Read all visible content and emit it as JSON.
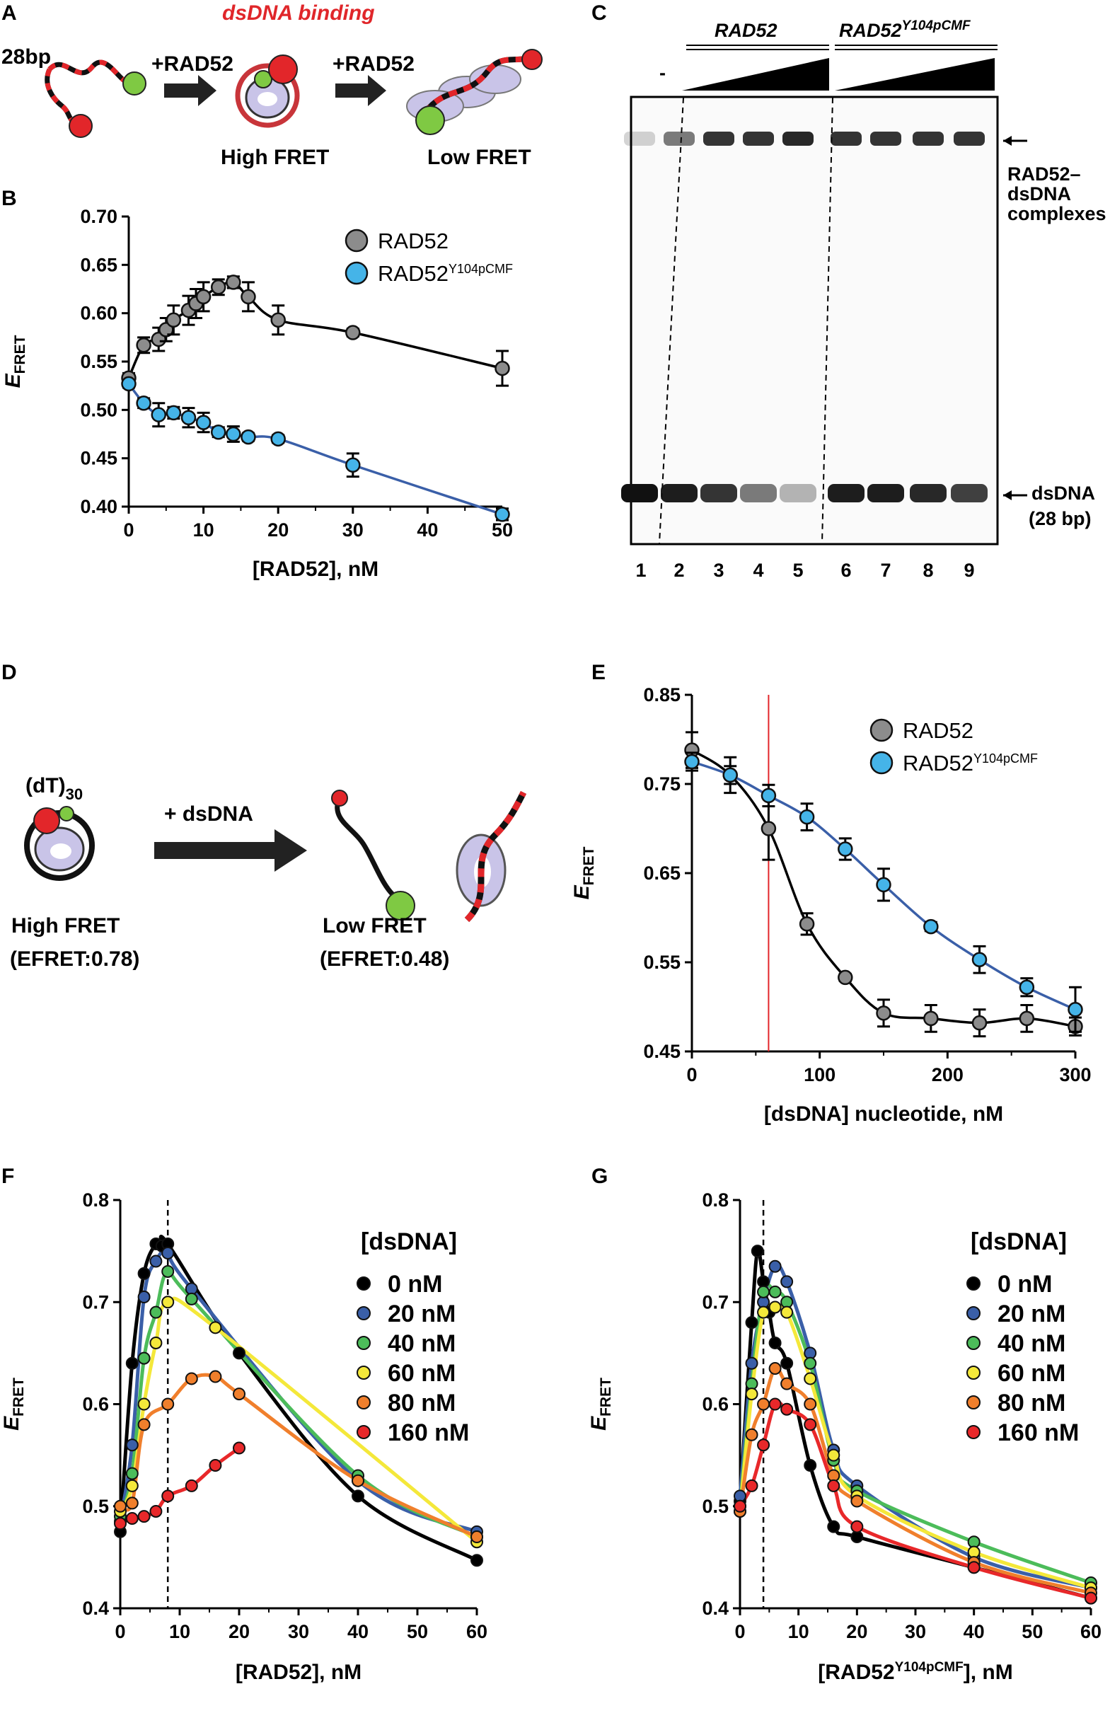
{
  "panels": {
    "A": {
      "label": "A",
      "title": "dsDNA binding",
      "dna_label": "28bp",
      "arrow1": "+RAD52",
      "arrow2": "+RAD52",
      "state1": "High FRET",
      "state2": "Low FRET"
    },
    "C": {
      "label": "C",
      "group1": "RAD52",
      "group2": "RAD52",
      "group2_sup": "Y104pCMF",
      "lane1_label": "-",
      "complex_label": [
        "RAD52–",
        "dsDNA",
        "complexes"
      ],
      "dsdna_label": [
        "dsDNA",
        "(28 bp)"
      ],
      "lanes": [
        "1",
        "2",
        "3",
        "4",
        "5",
        "6",
        "7",
        "8",
        "9"
      ]
    },
    "D": {
      "label": "D",
      "substrate": "(dT)",
      "substrate_sub": "30",
      "arrow": "+ dsDNA",
      "state1": "High FRET",
      "state1_value": "(EFRET:0.78)",
      "state2": "Low FRET",
      "state2_value": "(EFRET:0.48)"
    }
  },
  "colors": {
    "rad52": "#8c8c8c",
    "mutant": "#45b4e8",
    "black": "#000000",
    "blue": "#3a5fa8",
    "green": "#4cbc5a",
    "yellow": "#f4e83a",
    "orange": "#f07f2c",
    "red": "#e8282a"
  },
  "chart_data": [
    {
      "panel": "B",
      "type": "scatter",
      "xlabel": "[RAD52], nM",
      "ylabel": "EFRET",
      "xlim": [
        0,
        50
      ],
      "ylim": [
        0.4,
        0.7
      ],
      "xticks": [
        0,
        10,
        20,
        30,
        40,
        50
      ],
      "yticks": [
        "0.70",
        "0.65",
        "0.60",
        "0.55",
        "0.50",
        "0.45",
        "0.40"
      ],
      "legend_position": "top-right",
      "series": [
        {
          "name": "RAD52",
          "x": [
            0,
            2,
            4,
            5,
            6,
            8,
            9,
            10,
            12,
            14,
            16,
            20,
            30,
            50
          ],
          "y": [
            0.533,
            0.567,
            0.573,
            0.583,
            0.593,
            0.603,
            0.61,
            0.617,
            0.627,
            0.632,
            0.617,
            0.593,
            0.58,
            0.543
          ],
          "err": [
            0.005,
            0.008,
            0.012,
            0.012,
            0.015,
            0.015,
            0.015,
            0.015,
            0.008,
            0.006,
            0.015,
            0.015,
            0.004,
            0.018
          ]
        },
        {
          "name": "RAD52Y104pCMF",
          "x": [
            0,
            2,
            4,
            6,
            8,
            10,
            12,
            14,
            16,
            20,
            30,
            50
          ],
          "y": [
            0.527,
            0.507,
            0.495,
            0.497,
            0.492,
            0.487,
            0.477,
            0.475,
            0.472,
            0.47,
            0.443,
            0.392
          ],
          "err": [
            0.004,
            0.005,
            0.012,
            0.006,
            0.01,
            0.01,
            0.005,
            0.008,
            0.004,
            0.004,
            0.012,
            0.006
          ]
        }
      ]
    },
    {
      "panel": "E",
      "type": "scatter",
      "xlabel": "[dsDNA] nucleotide, nM",
      "ylabel": "EFRET",
      "xlim": [
        0,
        300
      ],
      "ylim": [
        0.45,
        0.85
      ],
      "xticks": [
        0,
        100,
        200,
        300
      ],
      "yticks": [
        "0.85",
        "0.75",
        "0.65",
        "0.55",
        "0.45"
      ],
      "vline_x": 60,
      "legend_position": "top-right",
      "series": [
        {
          "name": "RAD52",
          "x": [
            0,
            30,
            60,
            90,
            120,
            150,
            187,
            225,
            262,
            300
          ],
          "y": [
            0.788,
            0.76,
            0.7,
            0.593,
            0.533,
            0.493,
            0.487,
            0.482,
            0.487,
            0.478
          ],
          "err": [
            0.02,
            0.02,
            0.035,
            0.012,
            0.004,
            0.015,
            0.015,
            0.015,
            0.015,
            0.01
          ]
        },
        {
          "name": "RAD52Y104pCMF",
          "x": [
            0,
            30,
            60,
            90,
            120,
            150,
            187,
            225,
            262,
            300
          ],
          "y": [
            0.775,
            0.76,
            0.737,
            0.713,
            0.677,
            0.637,
            0.59,
            0.553,
            0.522,
            0.497
          ],
          "err": [
            0.01,
            0.01,
            0.012,
            0.015,
            0.012,
            0.018,
            0.005,
            0.015,
            0.01,
            0.025
          ]
        }
      ]
    },
    {
      "panel": "F",
      "type": "scatter",
      "xlabel": "[RAD52], nM",
      "ylabel": "EFRET",
      "xlim": [
        0,
        60
      ],
      "ylim": [
        0.4,
        0.8
      ],
      "xticks": [
        0,
        10,
        20,
        30,
        40,
        50,
        60
      ],
      "yticks": [
        "0.8",
        "0.7",
        "0.6",
        "0.5",
        "0.4"
      ],
      "vline_x": 8,
      "legend_title": "[dsDNA]",
      "legend_position": "right",
      "series": [
        {
          "name": "0 nM",
          "x": [
            0,
            2,
            4,
            6,
            7,
            8,
            20,
            40,
            60
          ],
          "y": [
            0.475,
            0.64,
            0.728,
            0.757,
            0.755,
            0.757,
            0.65,
            0.51,
            0.447
          ]
        },
        {
          "name": "20 nM",
          "x": [
            0,
            2,
            4,
            6,
            8,
            12,
            40,
            60
          ],
          "y": [
            0.485,
            0.56,
            0.705,
            0.74,
            0.748,
            0.713,
            0.525,
            0.475
          ]
        },
        {
          "name": "40 nM",
          "x": [
            0,
            2,
            4,
            6,
            8,
            12,
            40,
            60
          ],
          "y": [
            0.49,
            0.532,
            0.645,
            0.69,
            0.73,
            0.703,
            0.53,
            0.47
          ]
        },
        {
          "name": "60 nM",
          "x": [
            0,
            2,
            4,
            6,
            8,
            16,
            60
          ],
          "y": [
            0.495,
            0.52,
            0.6,
            0.66,
            0.7,
            0.675,
            0.465
          ]
        },
        {
          "name": "80 nM",
          "x": [
            0,
            2,
            4,
            8,
            12,
            16,
            20,
            40,
            60
          ],
          "y": [
            0.5,
            0.503,
            0.58,
            0.6,
            0.625,
            0.627,
            0.61,
            0.525,
            0.47
          ]
        },
        {
          "name": "160 nM",
          "x": [
            0,
            2,
            4,
            6,
            8,
            12,
            16,
            20
          ],
          "y": [
            0.483,
            0.488,
            0.49,
            0.495,
            0.51,
            0.52,
            0.54,
            0.557
          ]
        }
      ]
    },
    {
      "panel": "G",
      "type": "scatter",
      "xlabel": "[RAD52Y104pCMF], nM",
      "ylabel": "EFRET",
      "xlim": [
        0,
        60
      ],
      "ylim": [
        0.4,
        0.8
      ],
      "xticks": [
        0,
        10,
        20,
        30,
        40,
        50,
        60
      ],
      "yticks": [
        "0.8",
        "0.7",
        "0.6",
        "0.5",
        "0.4"
      ],
      "vline_x": 4,
      "legend_title": "[dsDNA]",
      "legend_position": "right",
      "series": [
        {
          "name": "0 nM",
          "x": [
            0,
            2,
            3,
            4,
            5,
            6,
            8,
            12,
            16,
            20,
            40,
            60
          ],
          "y": [
            0.505,
            0.68,
            0.75,
            0.72,
            0.69,
            0.66,
            0.64,
            0.54,
            0.48,
            0.47,
            0.44,
            0.41
          ]
        },
        {
          "name": "20 nM",
          "x": [
            0,
            2,
            4,
            6,
            8,
            12,
            16,
            20,
            40,
            60
          ],
          "y": [
            0.51,
            0.64,
            0.7,
            0.735,
            0.72,
            0.65,
            0.555,
            0.52,
            0.45,
            0.42
          ]
        },
        {
          "name": "40 nM",
          "x": [
            0,
            2,
            4,
            6,
            8,
            12,
            16,
            20,
            40,
            60
          ],
          "y": [
            0.5,
            0.62,
            0.71,
            0.71,
            0.7,
            0.64,
            0.545,
            0.515,
            0.465,
            0.425
          ]
        },
        {
          "name": "60 nM",
          "x": [
            0,
            2,
            4,
            6,
            8,
            12,
            16,
            20,
            40,
            60
          ],
          "y": [
            0.495,
            0.61,
            0.69,
            0.695,
            0.69,
            0.625,
            0.55,
            0.51,
            0.455,
            0.42
          ]
        },
        {
          "name": "80 nM",
          "x": [
            0,
            2,
            4,
            6,
            8,
            12,
            16,
            20,
            40,
            60
          ],
          "y": [
            0.495,
            0.57,
            0.6,
            0.635,
            0.62,
            0.6,
            0.53,
            0.505,
            0.445,
            0.415
          ]
        },
        {
          "name": "160 nM",
          "x": [
            0,
            2,
            4,
            6,
            8,
            12,
            16,
            20,
            40,
            60
          ],
          "y": [
            0.5,
            0.52,
            0.56,
            0.6,
            0.595,
            0.58,
            0.52,
            0.48,
            0.44,
            0.41
          ]
        }
      ]
    }
  ]
}
